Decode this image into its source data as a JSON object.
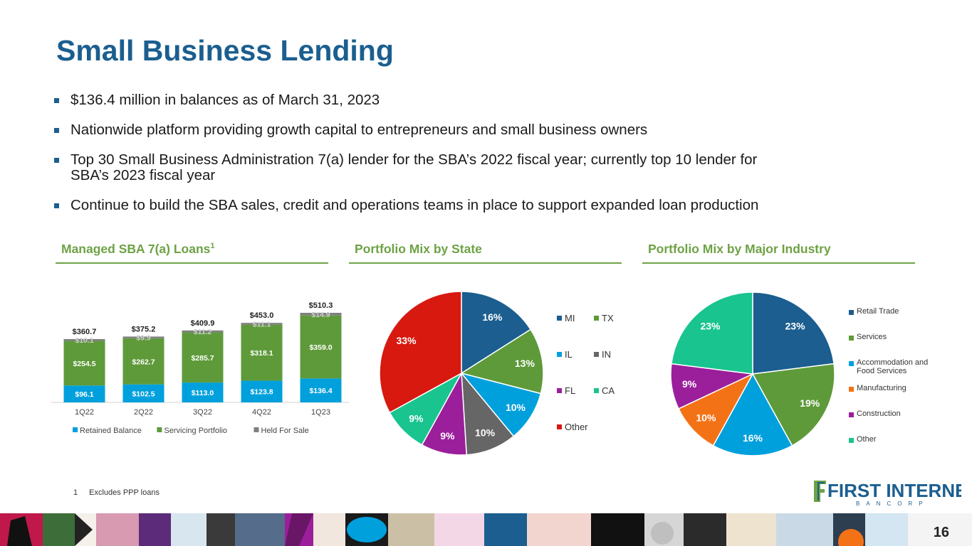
{
  "title": "Small Business Lending",
  "bullets": [
    "$136.4 million in balances as of March 31, 2023",
    "Nationwide platform providing growth capital to entrepreneurs and small business owners",
    "Top 30 Small Business Administration 7(a) lender for the SBA’s 2022 fiscal year; currently top 10 lender for SBA’s 2023 fiscal year",
    "Continue to build the SBA sales, credit and operations teams in place to support expanded loan production"
  ],
  "sections": {
    "sba": "Managed SBA 7(a) Loans",
    "sba_sup": "1",
    "state": "Portfolio Mix by State",
    "industry": "Portfolio Mix by Major Industry"
  },
  "colors": {
    "brand": "#1b5e8f",
    "accent_green": "#6ea245",
    "retained": "#00a0dd",
    "servicing": "#5e9a3a",
    "held": "#7f7f7f"
  },
  "chart_data": [
    {
      "type": "bar",
      "stacked": true,
      "categories": [
        "1Q22",
        "2Q22",
        "3Q22",
        "4Q22",
        "1Q23"
      ],
      "series": [
        {
          "name": "Retained Balance",
          "values": [
            96.1,
            102.5,
            113.0,
            123.8,
            136.4
          ],
          "labels": [
            "$96.1",
            "$102.5",
            "$113.0",
            "$123.8",
            "$136.4"
          ],
          "color": "#00a0dd"
        },
        {
          "name": "Servicing Portfolio",
          "values": [
            254.5,
            262.7,
            285.7,
            318.1,
            359.0
          ],
          "labels": [
            "$254.5",
            "$262.7",
            "$285.7",
            "$318.1",
            "$359.0"
          ],
          "color": "#5e9a3a"
        },
        {
          "name": "Held For Sale",
          "values": [
            10.1,
            9.9,
            11.2,
            11.1,
            14.9
          ],
          "labels": [
            "$10.1",
            "$9.9",
            "$11.2",
            "$11.1",
            "$14.9"
          ],
          "color": "#7f7f7f"
        }
      ],
      "totals": [
        360.7,
        375.2,
        409.9,
        453.0,
        510.3
      ],
      "total_labels": [
        "$360.7",
        "$375.2",
        "$409.9",
        "$453.0",
        "$510.3"
      ],
      "ylim": [
        0,
        510.3
      ],
      "legend": "bottom"
    },
    {
      "type": "pie",
      "labels": [
        "MI",
        "TX",
        "IL",
        "IN",
        "FL",
        "CA",
        "Other"
      ],
      "values": [
        16,
        13,
        10,
        10,
        9,
        9,
        33
      ],
      "value_labels": [
        "16%",
        "13%",
        "10%",
        "10%",
        "9%",
        "9%",
        "33%"
      ],
      "colors": [
        "#1b5e8f",
        "#5e9a3a",
        "#00a0dd",
        "#666666",
        "#9b1f9b",
        "#19c48e",
        "#d7190f"
      ],
      "legend": "right"
    },
    {
      "type": "pie",
      "labels": [
        "Retail Trade",
        "Services",
        "Accommodation and Food Services",
        "Manufacturing",
        "Construction",
        "Other"
      ],
      "values": [
        23,
        19,
        16,
        10,
        9,
        23
      ],
      "value_labels": [
        "23%",
        "19%",
        "16%",
        "10%",
        "9%",
        "23%"
      ],
      "colors": [
        "#1b5e8f",
        "#5e9a3a",
        "#00a0dd",
        "#f47216",
        "#9b1f9b",
        "#19c48e"
      ],
      "legend": "right"
    }
  ],
  "footnote": {
    "number": "1",
    "text": "Excludes PPP loans"
  },
  "logo": {
    "name": "FIRST INTERNET",
    "sub": "BANCORP"
  },
  "page_number": "16"
}
